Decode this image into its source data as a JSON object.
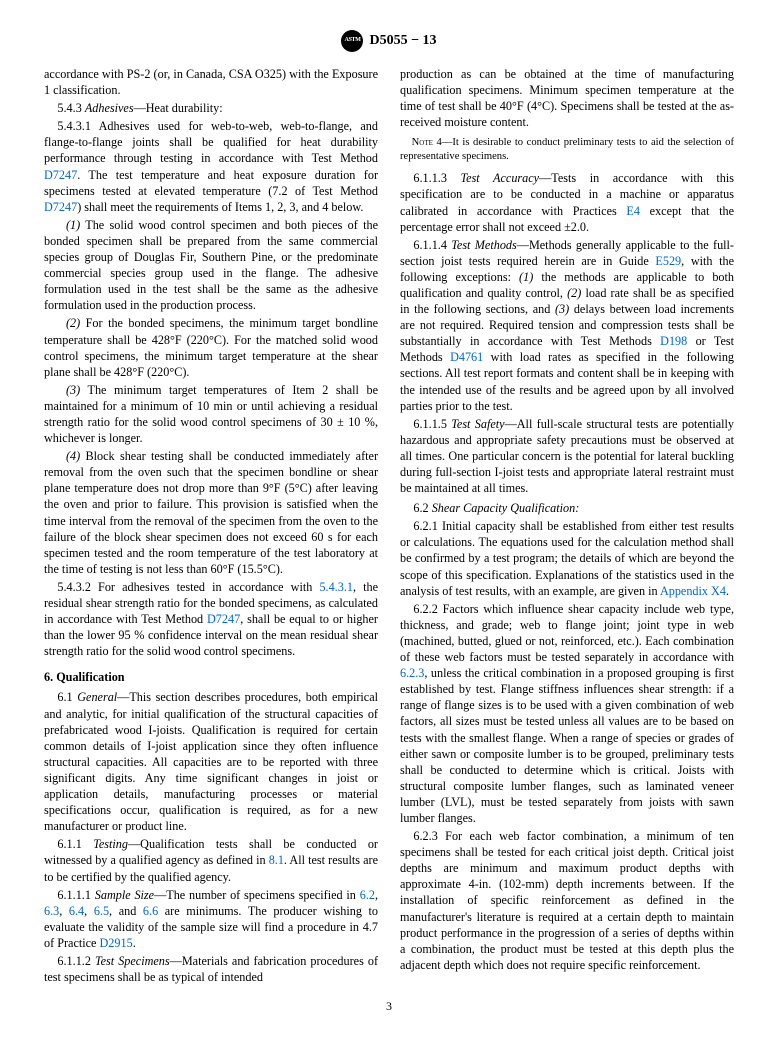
{
  "header": {
    "doc_number": "D5055 − 13"
  },
  "col1": {
    "p1": "accordance with PS-2 (or, in Canada, CSA O325) with the Exposure 1 classification.",
    "p543_label": "5.4.3 ",
    "p543_title": "Adhesives",
    "p543_rest": "—Heat durability:",
    "p5431": "5.4.3.1 Adhesives used for web-to-web, web-to-flange, and flange-to-flange joints shall be qualified for heat durability performance through testing in accordance with Test Method ",
    "ref_d7247a": "D7247",
    "p5431b": ". The test temperature and heat exposure duration for specimens tested at elevated temperature (7.2 of Test Method ",
    "ref_d7247b": "D7247",
    "p5431c": ") shall meet the requirements of Items 1, 2, 3, and 4 below.",
    "i1_label": "(1)",
    "i1": " The solid wood control specimen and both pieces of the bonded specimen shall be prepared from the same commercial species group of Douglas Fir, Southern Pine, or the predominate commercial species group used in the flange. The adhesive formulation used in the test shall be the same as the adhesive formulation used in the production process.",
    "i2_label": "(2)",
    "i2": " For the bonded specimens, the minimum target bondline temperature shall be 428°F (220°C). For the matched solid wood control specimens, the minimum target temperature at the shear plane shall be 428°F (220°C).",
    "i3_label": "(3)",
    "i3": " The minimum target temperatures of Item 2 shall be maintained for a minimum of 10 min or until achieving a residual strength ratio for the solid wood control specimens of 30 ± 10 %, whichever is longer.",
    "i4_label": "(4)",
    "i4": " Block shear testing shall be conducted immediately after removal from the oven such that the specimen bondline or shear plane temperature does not drop more than 9°F (5°C) after leaving the oven and prior to failure. This provision is satisfied when the time interval from the removal of the specimen from the oven to the failure of the block shear specimen does not exceed 60 s for each specimen tested and the room temperature of the test laboratory at the time of testing is not less than 60°F (15.5°C).",
    "p5432a": "5.4.3.2 For adhesives tested in accordance with ",
    "ref_5431": "5.4.3.1",
    "p5432b": ", the residual shear strength ratio for the bonded specimens, as calculated in accordance with Test Method ",
    "ref_d7247c": "D7247",
    "p5432c": ", shall be equal to or higher than the lower 95 % confidence interval on the mean residual shear strength ratio for the solid wood control specimens.",
    "sec6_head": "6. Qualification",
    "p61_label": "6.1 ",
    "p61_title": "General",
    "p61": "—This section describes procedures, both empirical and analytic, for initial qualification of the structural capacities of prefabricated wood I-joists. Qualification is required for certain common details of I-joist application since they often influence structural capacities. All capacities are to be reported with three significant digits. Any time significant changes in joist or application details, manufacturing processes or material specifications occur, qualification is required, as for a new manufacturer or product line.",
    "p611_label": "6.1.1 ",
    "p611_title": "Testing",
    "p611a": "—Qualification tests shall be conducted or witnessed by a qualified agency as defined in ",
    "ref_81": "8.1",
    "p611b": ". All test results are to be certified by the qualified agency.",
    "p6111_label": "6.1.1.1 ",
    "p6111_title": "Sample Size",
    "p6111a": "—The number of specimens specified in ",
    "ref_62": "6.2",
    "ref_63": "6.3",
    "ref_64": "6.4",
    "ref_65": "6.5",
    "ref_66": "6.6",
    "p6111b": " are minimums. The producer wishing to evaluate the validity of the sample size will find a procedure in 4.7 of Practice ",
    "ref_d2915": "D2915",
    "p6111c": ".",
    "p6112_label": "6.1.1.2 ",
    "p6112_title": "Test Specimens",
    "p6112": "—Materials and fabrication procedures of test specimens shall be as typical of intended"
  },
  "col2": {
    "p1": "production as can be obtained at the time of manufacturing qualification specimens. Minimum specimen temperature at the time of test shall be 40°F (4°C). Specimens shall be tested at the as-received moisture content.",
    "note4_label": "Note 4—",
    "note4": "It is desirable to conduct preliminary tests to aid the selection of representative specimens.",
    "p6113_label": "6.1.1.3 ",
    "p6113_title": "Test Accuracy",
    "p6113a": "—Tests in accordance with this specification are to be conducted in a machine or apparatus calibrated in accordance with Practices ",
    "ref_e4": "E4",
    "p6113b": " except that the percentage error shall not exceed ±2.0.",
    "p6114_label": "6.1.1.4 ",
    "p6114_title": "Test Methods",
    "p6114a": "—Methods generally applicable to the full-section joist tests required herein are in Guide ",
    "ref_e529": "E529",
    "p6114b": ", with the following exceptions: ",
    "p6114_i1lbl": "(1)",
    "p6114_i1": " the methods are applicable to both qualification and quality control, ",
    "p6114_i2lbl": "(2)",
    "p6114_i2": " load rate shall be as specified in the following sections, and ",
    "p6114_i3lbl": "(3)",
    "p6114_i3": " delays between load increments are not required. Required tension and compression tests shall be substantially in accordance with Test Methods ",
    "ref_d198": "D198",
    "p6114c": " or Test Methods ",
    "ref_d4761": "D4761",
    "p6114d": " with load rates as specified in the following sections. All test report formats and content shall be in keeping with the intended use of the results and be agreed upon by all involved parties prior to the test.",
    "p6115_label": "6.1.1.5 ",
    "p6115_title": "Test Safety",
    "p6115": "—All full-scale structural tests are potentially hazardous and appropriate safety precautions must be observed at all times. One particular concern is the potential for lateral buckling during full-section I-joist tests and appropriate lateral restraint must be maintained at all times.",
    "p62_label": "6.2 ",
    "p62_title": "Shear Capacity Qualification:",
    "p621a": "6.2.1 Initial capacity shall be established from either test results or calculations. The equations used for the calculation method shall be confirmed by a test program; the details of which are beyond the scope of this specification. Explanations of the statistics used in the analysis of test results, with an example, are given in ",
    "ref_x4": "Appendix X4",
    "p621b": ".",
    "p622a": "6.2.2 Factors which influence shear capacity include web type, thickness, and grade; web to flange joint; joint type in web (machined, butted, glued or not, reinforced, etc.). Each combination of these web factors must be tested separately in accordance with ",
    "ref_623": "6.2.3",
    "p622b": ", unless the critical combination in a proposed grouping is first established by test. Flange stiffness influences shear strength: if a range of flange sizes is to be used with a given combination of web factors, all sizes must be tested unless all values are to be based on tests with the smallest flange. When a range of species or grades of either sawn or composite lumber is to be grouped, preliminary tests shall be conducted to determine which is critical. Joists with structural composite lumber flanges, such as laminated veneer lumber (LVL), must be tested separately from joists with sawn lumber flanges.",
    "p623": "6.2.3 For each web factor combination, a minimum of ten specimens shall be tested for each critical joist depth. Critical joist depths are minimum and maximum product depths with approximate 4-in. (102-mm) depth increments between. If the installation of specific reinforcement as defined in the manufacturer's literature is required at a certain depth to maintain product performance in the progression of a series of depths within a combination, the product must be tested at this depth plus the adjacent depth which does not require specific reinforcement."
  },
  "pagenum": "3"
}
